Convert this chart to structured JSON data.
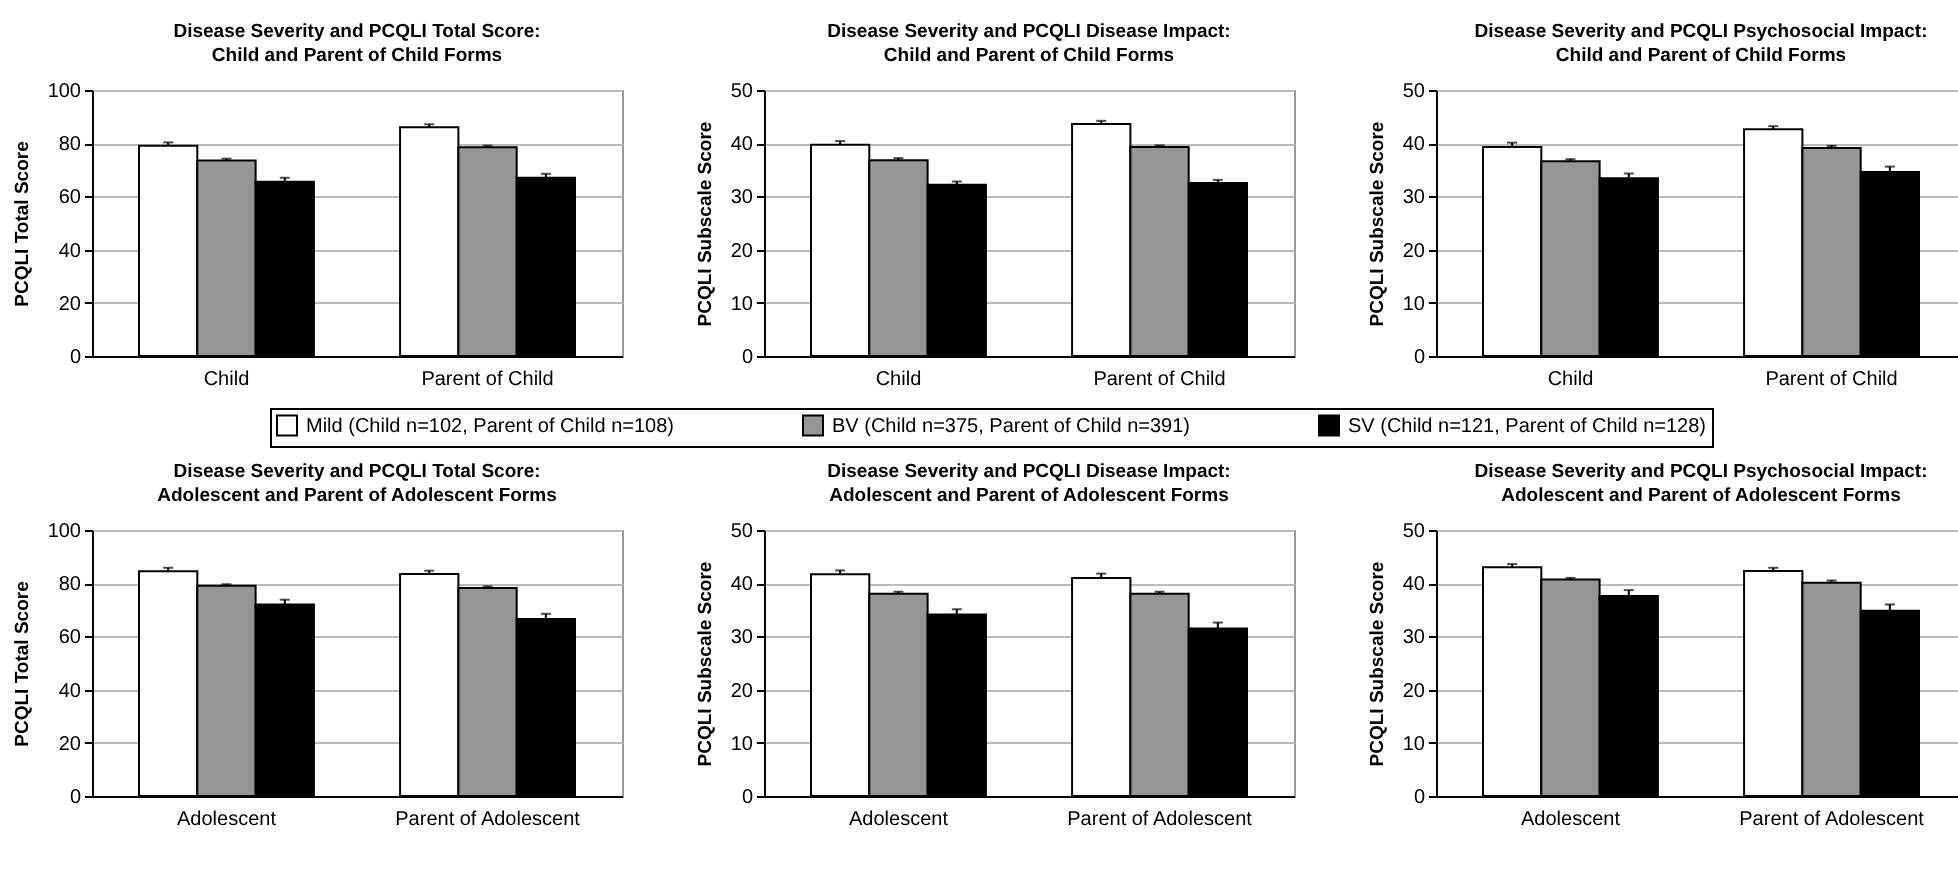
{
  "chart_data": [
    {
      "type": "bar",
      "title": "Disease Severity and PCQLI Total Score:\nChild and Parent of Child Forms",
      "ylabel": "PCQLI Total Score",
      "categories": [
        "Child",
        "Parent of Child"
      ],
      "ylim": [
        0,
        100
      ],
      "yticks": [
        0,
        20,
        40,
        60,
        80,
        100
      ],
      "grid": "y",
      "legend": "bottom",
      "series": [
        {
          "name": "Mild (Child n=102, Parent of Child n=108)",
          "color": "#ffffff",
          "values": [
            79,
            86
          ],
          "errors": [
            [
              79,
              80.3
            ],
            [
              86,
              87.1
            ]
          ]
        },
        {
          "name": "BV (Child n=375, Parent of Child n=391)",
          "color": "#969696",
          "values": [
            73.5,
            78.5
          ],
          "errors": [
            [
              73.5,
              74.2
            ],
            [
              78.5,
              79.1
            ]
          ]
        },
        {
          "name": "SV (Child n=121, Parent of Child n=128)",
          "color": "#000000",
          "values": [
            65.5,
            67
          ],
          "errors": [
            [
              65.5,
              67
            ],
            [
              67,
              68.5
            ]
          ]
        }
      ]
    },
    {
      "type": "bar",
      "title": "Disease Severity and PCQLI Disease Impact:\nChild and Parent of Child Forms",
      "ylabel": "PCQLI Subscale Score",
      "categories": [
        "Child",
        "Parent of Child"
      ],
      "ylim": [
        0,
        50
      ],
      "yticks": [
        0,
        10,
        20,
        30,
        40,
        50
      ],
      "grid": "y",
      "series": [
        {
          "color": "#ffffff",
          "values": [
            39.7,
            43.6
          ],
          "errors": [
            [
              39.7,
              40.4
            ],
            [
              43.6,
              44.2
            ]
          ]
        },
        {
          "color": "#969696",
          "values": [
            36.8,
            39.3
          ],
          "errors": [
            [
              36.8,
              37.2
            ],
            [
              39.3,
              39.6
            ]
          ]
        },
        {
          "color": "#000000",
          "values": [
            32.2,
            32.5
          ],
          "errors": [
            [
              32.2,
              32.8
            ],
            [
              32.5,
              33.1
            ]
          ]
        }
      ]
    },
    {
      "type": "bar",
      "title": "Disease Severity and PCQLI Psychosocial Impact:\nChild and Parent of Child Forms",
      "ylabel": "PCQLI Subscale Score",
      "categories": [
        "Child",
        "Parent of Child"
      ],
      "ylim": [
        0,
        50
      ],
      "yticks": [
        0,
        10,
        20,
        30,
        40,
        50
      ],
      "grid": "y",
      "series": [
        {
          "color": "#ffffff",
          "values": [
            39.3,
            42.6
          ],
          "errors": [
            [
              39.3,
              40.1
            ],
            [
              42.6,
              43.2
            ]
          ]
        },
        {
          "color": "#969696",
          "values": [
            36.6,
            39.1
          ],
          "errors": [
            [
              36.6,
              37
            ],
            [
              39.1,
              39.5
            ]
          ]
        },
        {
          "color": "#000000",
          "values": [
            33.4,
            34.6
          ],
          "errors": [
            [
              33.4,
              34.3
            ],
            [
              34.6,
              35.6
            ]
          ]
        }
      ]
    },
    {
      "type": "bar",
      "title": "Disease Severity and PCQLI Total Score:\nAdolescent and Parent of Adolescent Forms",
      "ylabel": "PCQLI Total Score",
      "categories": [
        "Adolescent",
        "Parent of Adolescent"
      ],
      "ylim": [
        0,
        100
      ],
      "yticks": [
        0,
        20,
        40,
        60,
        80,
        100
      ],
      "grid": "y",
      "series": [
        {
          "color": "#ffffff",
          "values": [
            84.5,
            83.5
          ],
          "errors": [
            [
              84.5,
              85.8
            ],
            [
              83.5,
              84.7
            ]
          ]
        },
        {
          "color": "#969696",
          "values": [
            79,
            78.2
          ],
          "errors": [
            [
              79,
              79.6
            ],
            [
              78.2,
              78.8
            ]
          ]
        },
        {
          "color": "#000000",
          "values": [
            72,
            66.5
          ],
          "errors": [
            [
              72,
              73.8
            ],
            [
              66.5,
              68.5
            ]
          ]
        }
      ]
    },
    {
      "type": "bar",
      "title": "Disease Severity and PCQLI Disease Impact:\nAdolescent and Parent of Adolescent Forms",
      "ylabel": "PCQLI Subscale Score",
      "categories": [
        "Adolescent",
        "Parent of Adolescent"
      ],
      "ylim": [
        0,
        50
      ],
      "yticks": [
        0,
        10,
        20,
        30,
        40,
        50
      ],
      "grid": "y",
      "series": [
        {
          "color": "#ffffff",
          "values": [
            41.7,
            41
          ],
          "errors": [
            [
              41.7,
              42.4
            ],
            [
              41,
              41.8
            ]
          ]
        },
        {
          "color": "#969696",
          "values": [
            38,
            38
          ],
          "errors": [
            [
              38,
              38.4
            ],
            [
              38,
              38.4
            ]
          ]
        },
        {
          "color": "#000000",
          "values": [
            34.1,
            31.5
          ],
          "errors": [
            [
              34.1,
              35.1
            ],
            [
              31.5,
              32.6
            ]
          ]
        }
      ]
    },
    {
      "type": "bar",
      "title": "Disease Severity and PCQLI Psychosocial Impact:\nAdolescent and Parent of Adolescent Forms",
      "ylabel": "PCQLI Subscale Score",
      "categories": [
        "Adolescent",
        "Parent of Adolescent"
      ],
      "ylim": [
        0,
        50
      ],
      "yticks": [
        0,
        10,
        20,
        30,
        40,
        50
      ],
      "grid": "y",
      "series": [
        {
          "color": "#ffffff",
          "values": [
            43,
            42.3
          ],
          "errors": [
            [
              43,
              43.6
            ],
            [
              42.3,
              42.9
            ]
          ]
        },
        {
          "color": "#969696",
          "values": [
            40.7,
            40.1
          ],
          "errors": [
            [
              40.7,
              41
            ],
            [
              40.1,
              40.5
            ]
          ]
        },
        {
          "color": "#000000",
          "values": [
            37.6,
            34.8
          ],
          "errors": [
            [
              37.6,
              38.7
            ],
            [
              34.8,
              36
            ]
          ]
        }
      ]
    }
  ]
}
